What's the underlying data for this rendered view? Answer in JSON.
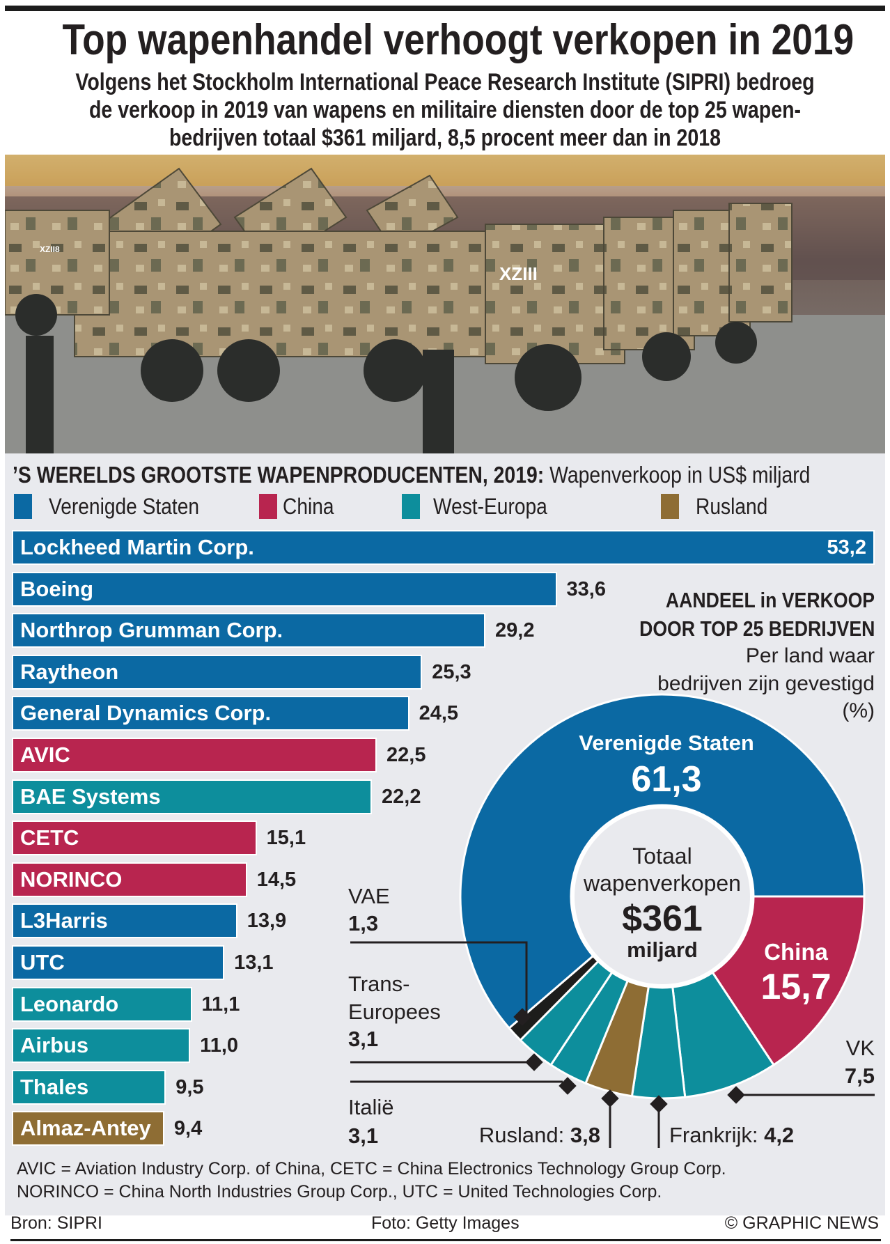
{
  "header": {
    "title": "Top wapenhandel verhoogt verkopen in 2019",
    "subtitle_lines": [
      "Volgens het Stockholm International Peace Research Institute (SIPRI) bedroeg",
      "de verkoop in 2019 van wapens en militaire diensten door de top 25 wapen-",
      "bedrijven totaal $361 miljard, 8,5 procent meer dan in 2018"
    ]
  },
  "photo": {
    "vehicle_marking": "XZIII",
    "vehicle_marking_2": "XZII8"
  },
  "colors": {
    "us": "#0b69a3",
    "china": "#b8254f",
    "europe": "#0d8e9c",
    "russia": "#8e6d34",
    "uae": "#1d1d1b",
    "panel": "#e9eaee"
  },
  "legend": [
    {
      "key": "us",
      "label": "Verenigde Staten"
    },
    {
      "key": "china",
      "label": "China"
    },
    {
      "key": "europe",
      "label": "West-Europa"
    },
    {
      "key": "russia",
      "label": "Rusland"
    }
  ],
  "chart_data": [
    {
      "type": "bar",
      "orientation": "horizontal",
      "title_bold": "’S WERELDS GROOTSTE WAPENPRODUCENTEN, 2019:",
      "title_rest": " Wapenverkoop in US$ miljard",
      "unit": "US$ miljard",
      "xlim": [
        0,
        53.2
      ],
      "categories": [
        "Lockheed Martin Corp.",
        "Boeing",
        "Northrop Grumman Corp.",
        "Raytheon",
        "General Dynamics Corp.",
        "AVIC",
        "BAE Systems",
        "CETC",
        "NORINCO",
        "L3Harris",
        "UTC",
        "Leonardo",
        "Airbus",
        "Thales",
        "Almaz-Antey"
      ],
      "values": [
        53.2,
        33.6,
        29.2,
        25.3,
        24.5,
        22.5,
        22.2,
        15.1,
        14.5,
        13.9,
        13.1,
        11.1,
        11.0,
        9.5,
        9.4
      ],
      "value_labels": [
        "53,2",
        "33,6",
        "29,2",
        "25,3",
        "24,5",
        "22,5",
        "22,2",
        "15,1",
        "14,5",
        "13,9",
        "13,1",
        "11,1",
        "11,0",
        "9,5",
        "9,4"
      ],
      "regions": [
        "us",
        "us",
        "us",
        "us",
        "us",
        "china",
        "europe",
        "china",
        "china",
        "us",
        "us",
        "europe",
        "europe",
        "europe",
        "russia"
      ]
    },
    {
      "type": "pie",
      "variant": "donut",
      "title_lines": [
        "AANDEEL in VERKOOP",
        "DOOR TOP 25 BEDRIJVEN"
      ],
      "subtitle_lines": [
        "Per land waar",
        "bedrijven zijn gevestigd",
        "(%)"
      ],
      "center": {
        "line1": "Totaal",
        "line2": "wapenverkopen",
        "amount": "$361",
        "unit": "miljard"
      },
      "slices": [
        {
          "label": "China",
          "value": 15.7,
          "display": "15,7",
          "color_key": "china"
        },
        {
          "label": "VK",
          "value": 7.5,
          "display": "7,5",
          "color_key": "europe"
        },
        {
          "label": "Frankrijk",
          "value": 4.2,
          "display": "4,2",
          "color_key": "europe"
        },
        {
          "label": "Rusland",
          "value": 3.8,
          "display": "3,8",
          "color_key": "russia"
        },
        {
          "label": "Italië",
          "value": 3.1,
          "display": "3,1",
          "color_key": "europe"
        },
        {
          "label": "Trans-Europees",
          "value": 3.1,
          "display": "3,1",
          "color_key": "europe"
        },
        {
          "label": "VAE",
          "value": 1.3,
          "display": "1,3",
          "color_key": "uae"
        },
        {
          "label": "Verenigde Staten",
          "value": 61.3,
          "display": "61,3",
          "color_key": "us"
        }
      ],
      "callouts": {
        "vae": {
          "name": "VAE",
          "value": "1,3"
        },
        "trans": {
          "name1": "Trans-",
          "name2": "Europees",
          "value": "3,1"
        },
        "italie": {
          "name": "Italië",
          "value": "3,1"
        },
        "rusland": {
          "name": "Rusland: ",
          "value": "3,8"
        },
        "frankrijk": {
          "name": "Frankrijk: ",
          "value": "4,2"
        },
        "vk": {
          "name": "VK",
          "value": "7,5"
        }
      }
    }
  ],
  "footnotes": [
    "AVIC = Aviation Industry Corp. of China, CETC = China Electronics Technology Group Corp.",
    "NORINCO = China North Industries Group Corp., UTC = United Technologies Corp."
  ],
  "credits": {
    "source": "Bron: SIPRI",
    "photo": "Foto: Getty Images",
    "copyright": "© GRAPHIC NEWS"
  }
}
